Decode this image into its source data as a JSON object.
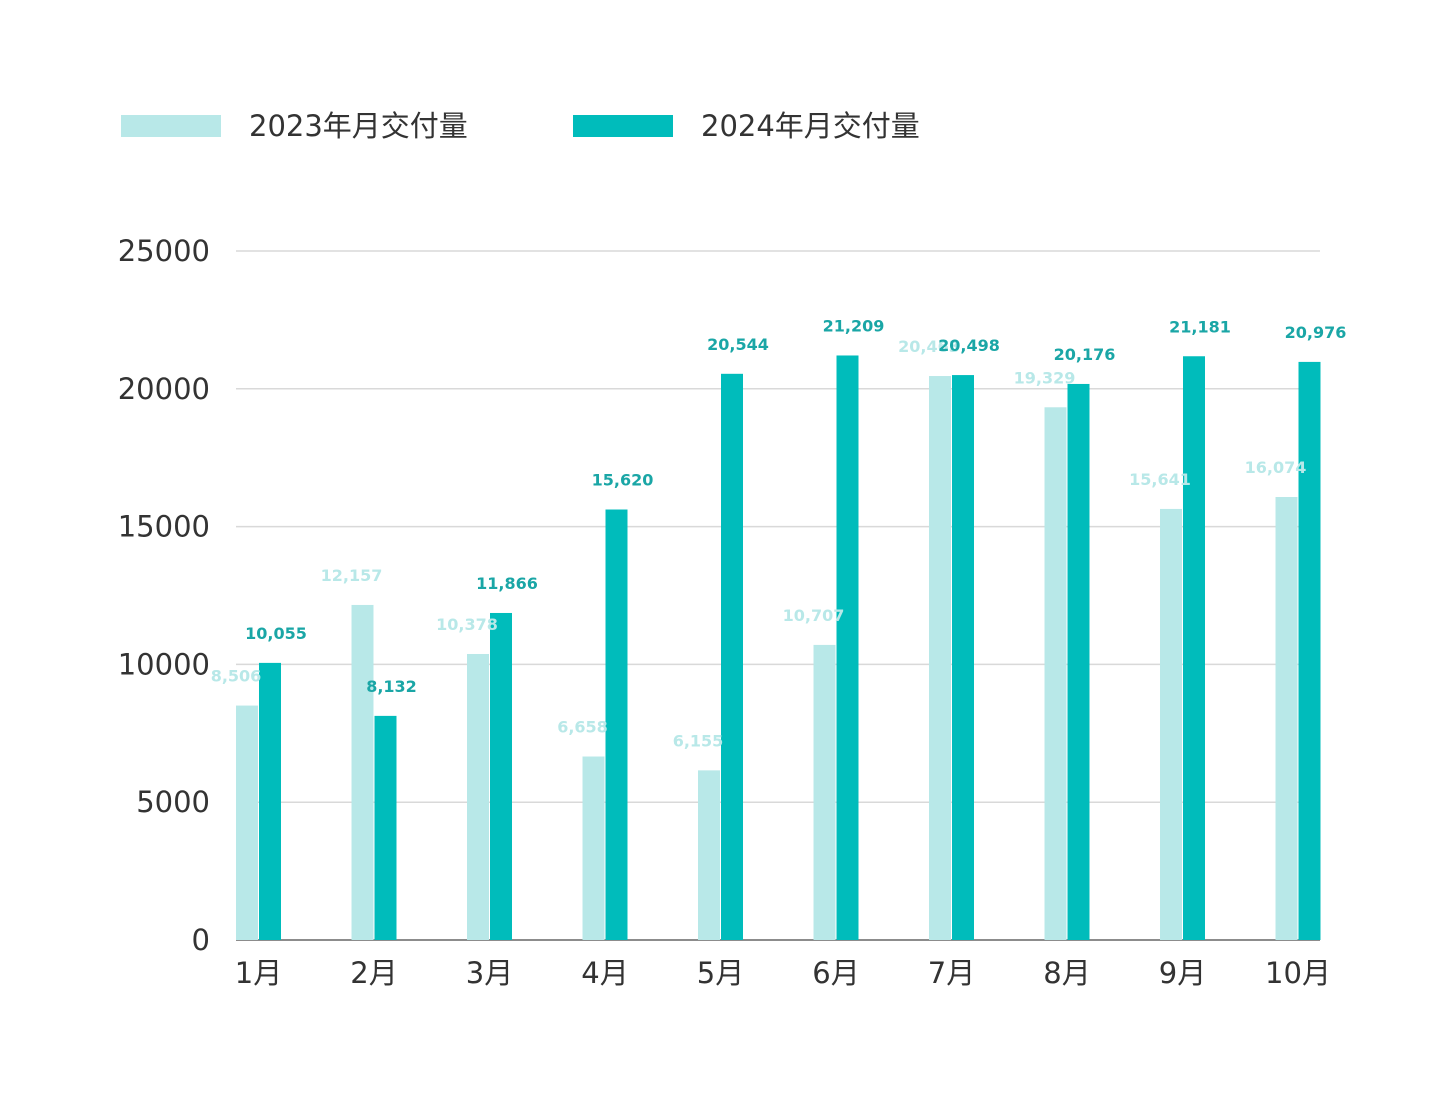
{
  "chart_data": {
    "type": "bar",
    "categories": [
      "1月",
      "2月",
      "3月",
      "4月",
      "5月",
      "6月",
      "7月",
      "8月",
      "9月",
      "10月"
    ],
    "series": [
      {
        "name": "2023年月交付量",
        "color": "#b8e8e8",
        "values": [
          8506,
          12157,
          10378,
          6658,
          6155,
          10707,
          20463,
          19329,
          15641,
          16074
        ],
        "labels": [
          "8,506",
          "12,157",
          "10,378",
          "6,658",
          "6,155",
          "10,707",
          "20,463",
          "19,329",
          "15,641",
          "16,074"
        ]
      },
      {
        "name": "2024年月交付量",
        "color": "#00bcbb",
        "values": [
          10055,
          8132,
          11866,
          15620,
          20544,
          21209,
          20498,
          20176,
          21181,
          20976
        ],
        "labels": [
          "10,055",
          "8,132",
          "11,866",
          "15,620",
          "20,544",
          "21,209",
          "20,498",
          "20,176",
          "21,181",
          "20,976"
        ]
      }
    ],
    "yticks": [
      "0",
      "5000",
      "10000",
      "15000",
      "20000",
      "25000"
    ],
    "ylim": [
      0,
      25000
    ],
    "grid": true,
    "legend_position": "top-left",
    "label_colors": {
      "2023": "#b8e8e8",
      "2024": "#1aa6a6"
    }
  }
}
